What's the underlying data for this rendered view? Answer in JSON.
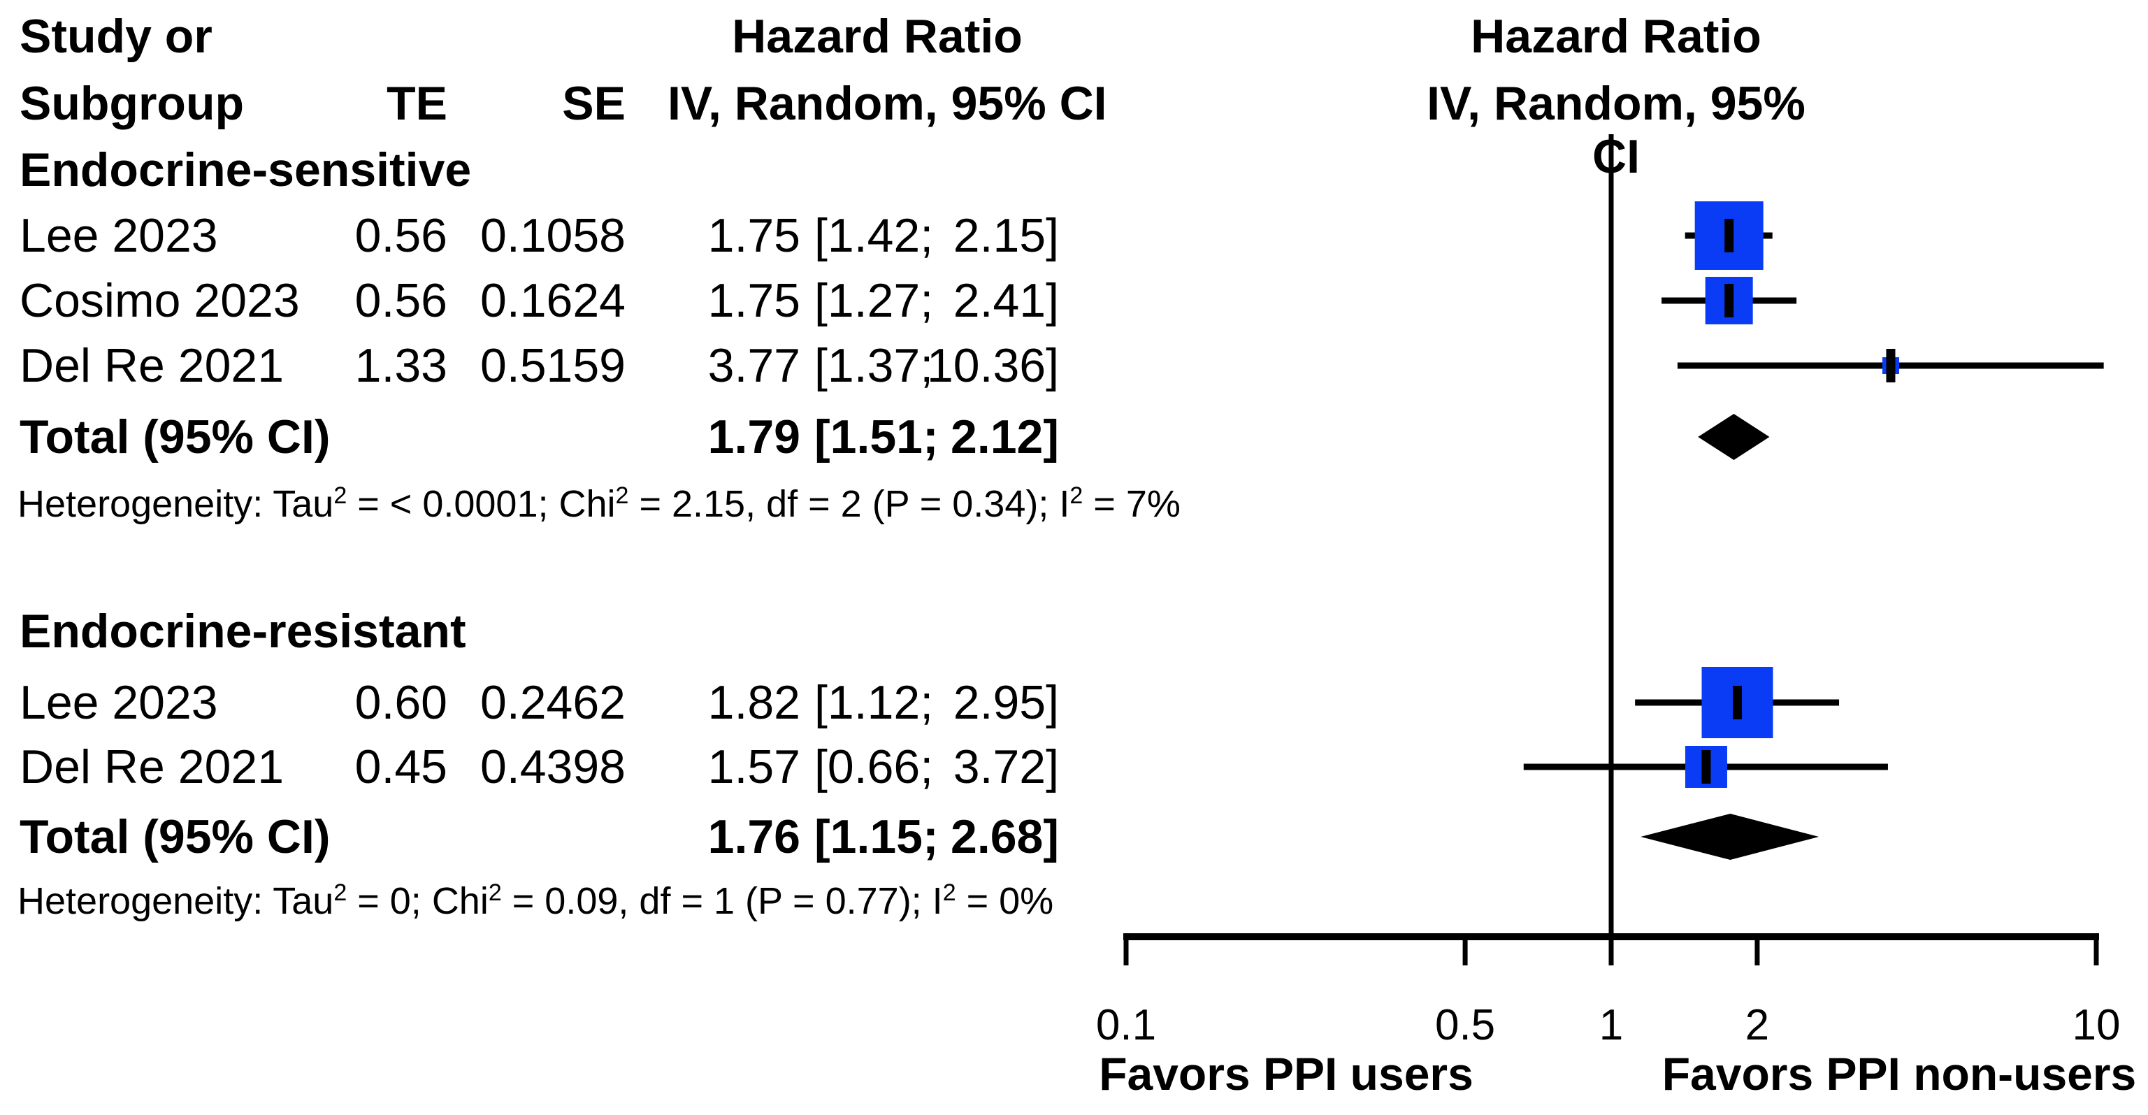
{
  "chart_data": {
    "type": "forest",
    "effect_measure": "Hazard Ratio",
    "model": "IV, Random, 95% CI",
    "columns": {
      "study_line1": "Study or",
      "study_line2": "Subgroup",
      "te": "TE",
      "se": "SE",
      "effect_line1": "Hazard Ratio",
      "effect_line2": "IV, Random, 95% CI",
      "plot_line1": "Hazard Ratio",
      "plot_line2": "IV, Random, 95% CI"
    },
    "axis": {
      "scale": "log10",
      "range": [
        0.1,
        10
      ],
      "ref_line": 1,
      "ticks": [
        "0.1",
        "0.5",
        "1",
        "2",
        "10"
      ],
      "label_left": "Favors PPI users",
      "label_right": "Favors PPI non-users"
    },
    "groups": [
      {
        "name": "Endocrine-sensitive",
        "studies": [
          {
            "label": "Lee 2023",
            "te": "0.56",
            "se": "0.1058",
            "hr": 1.75,
            "lo": 1.42,
            "hi": 2.15,
            "est_text": "1.75",
            "lo_text": "[1.42;",
            "hi_text": "2.15]",
            "square_size": 98
          },
          {
            "label": "Cosimo 2023",
            "te": "0.56",
            "se": "0.1624",
            "hr": 1.75,
            "lo": 1.27,
            "hi": 2.41,
            "est_text": "1.75",
            "lo_text": "[1.27;",
            "hi_text": "2.41]",
            "square_size": 68
          },
          {
            "label": "Del Re 2021",
            "te": "1.33",
            "se": "0.5159",
            "hr": 3.77,
            "lo": 1.37,
            "hi": 10.36,
            "est_text": "3.77",
            "lo_text": "[1.37;",
            "hi_text": "10.36]",
            "square_size": 24
          }
        ],
        "total": {
          "label": "Total (95% CI)",
          "hr": 1.79,
          "lo": 1.51,
          "hi": 2.12,
          "est_text": "1.79",
          "lo_text": "[1.51;",
          "hi_text": "2.12]"
        },
        "heterogeneity": "Heterogeneity: Tau² = < 0.0001; Chi² = 2.15, df = 2 (P = 0.34); I² = 7%"
      },
      {
        "name": "Endocrine-resistant",
        "studies": [
          {
            "label": "Lee 2023",
            "te": "0.60",
            "se": "0.2462",
            "hr": 1.82,
            "lo": 1.12,
            "hi": 2.95,
            "est_text": "1.82",
            "lo_text": "[1.12;",
            "hi_text": "2.95]",
            "square_size": 102
          },
          {
            "label": "Del Re 2021",
            "te": "0.45",
            "se": "0.4398",
            "hr": 1.57,
            "lo": 0.66,
            "hi": 3.72,
            "est_text": "1.57",
            "lo_text": "[0.66;",
            "hi_text": "3.72]",
            "square_size": 60
          }
        ],
        "total": {
          "label": "Total (95% CI)",
          "hr": 1.76,
          "lo": 1.15,
          "hi": 2.68,
          "est_text": "1.76",
          "lo_text": "[1.15;",
          "hi_text": "2.68]"
        },
        "heterogeneity": "Heterogeneity: Tau² = 0; Chi² = 0.09, df = 1 (P = 0.77); I² = 0%"
      }
    ],
    "colors": {
      "square": "#0a3cf5",
      "diamond": "#000000",
      "lines": "#000000",
      "text": "#000000",
      "background": "#ffffff"
    }
  }
}
